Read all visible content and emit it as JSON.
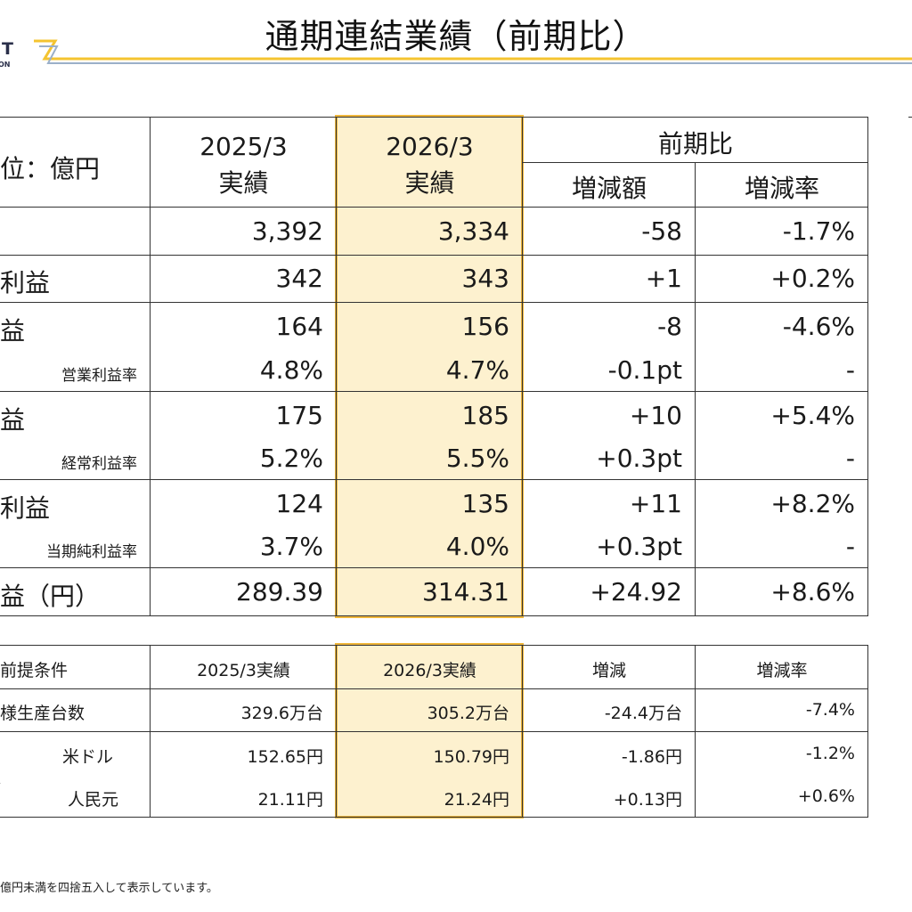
{
  "page": {
    "title": "通期連結業績（前期比）",
    "logo_text": "T",
    "logo_sub": "ON",
    "footnote": "億円未満を四捨五入して表示しています。"
  },
  "colors": {
    "highlight_fill": "#fdf1cf",
    "highlight_border": "#f0b73b",
    "rule_yellow": "#f4c430",
    "rule_blue": "#9bb0c9"
  },
  "results": {
    "unit_label": "位：億円",
    "col_prev": {
      "period": "2025/3",
      "kind": "実績"
    },
    "col_curr": {
      "period": "2026/3",
      "kind": "実績"
    },
    "col_compare": "前期比",
    "col_diff": "増減額",
    "col_rate": "増減率",
    "rows": [
      {
        "label": "",
        "prev": "3,392",
        "curr": "3,334",
        "diff": "-58",
        "rate": "-1.7%"
      },
      {
        "label": "利益",
        "prev": "342",
        "curr": "343",
        "diff": "+1",
        "rate": "+0.2%"
      },
      {
        "label": "益",
        "prev": "164",
        "curr": "156",
        "diff": "-8",
        "rate": "-4.6%",
        "sub": {
          "label": "営業利益率",
          "prev": "4.8%",
          "curr": "4.7%",
          "diff": "-0.1pt",
          "rate": "-"
        }
      },
      {
        "label": "益",
        "prev": "175",
        "curr": "185",
        "diff": "+10",
        "rate": "+5.4%",
        "sub": {
          "label": "経常利益率",
          "prev": "5.2%",
          "curr": "5.5%",
          "diff": "+0.3pt",
          "rate": "-"
        }
      },
      {
        "label": "利益",
        "prev": "124",
        "curr": "135",
        "diff": "+11",
        "rate": "+8.2%",
        "sub": {
          "label": "当期純利益率",
          "prev": "3.7%",
          "curr": "4.0%",
          "diff": "+0.3pt",
          "rate": "-"
        }
      },
      {
        "label": "益（円）",
        "prev": "289.39",
        "curr": "314.31",
        "diff": "+24.92",
        "rate": "+8.6%"
      }
    ]
  },
  "assumptions": {
    "header": {
      "label": "前提条件",
      "prev": "2025/3実績",
      "curr": "2026/3実績",
      "diff": "増減",
      "rate": "増減率"
    },
    "rows": [
      {
        "label": "様生産台数",
        "prev": "329.6万台",
        "curr": "305.2万台",
        "diff": "-24.4万台",
        "rate": "-7.4%"
      },
      {
        "label": "米ドル",
        "prev": "152.65円",
        "curr": "150.79円",
        "diff": "-1.86円",
        "rate": "-1.2%"
      },
      {
        "label": "人民元",
        "prev": "21.11円",
        "curr": "21.24円",
        "diff": "+0.13円",
        "rate": "+0.6%"
      }
    ],
    "fx_mark": "、"
  }
}
